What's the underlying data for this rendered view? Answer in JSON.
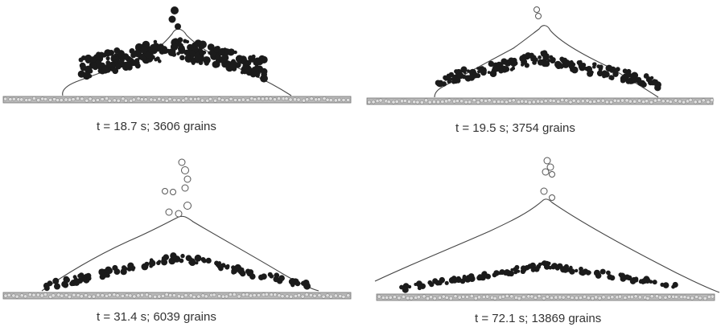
{
  "panels": [
    {
      "caption": "t = 18.7 s; 3606 grains",
      "time_s": 18.7,
      "grains": 3606
    },
    {
      "caption": "t = 19.5 s; 3754 grains",
      "time_s": 19.5,
      "grains": 3754
    },
    {
      "caption": "t = 31.4 s; 6039 grains",
      "time_s": 31.4,
      "grains": 6039
    },
    {
      "caption": "t = 72.1 s; 13869 grains",
      "time_s": 72.1,
      "grains": 13869
    }
  ]
}
